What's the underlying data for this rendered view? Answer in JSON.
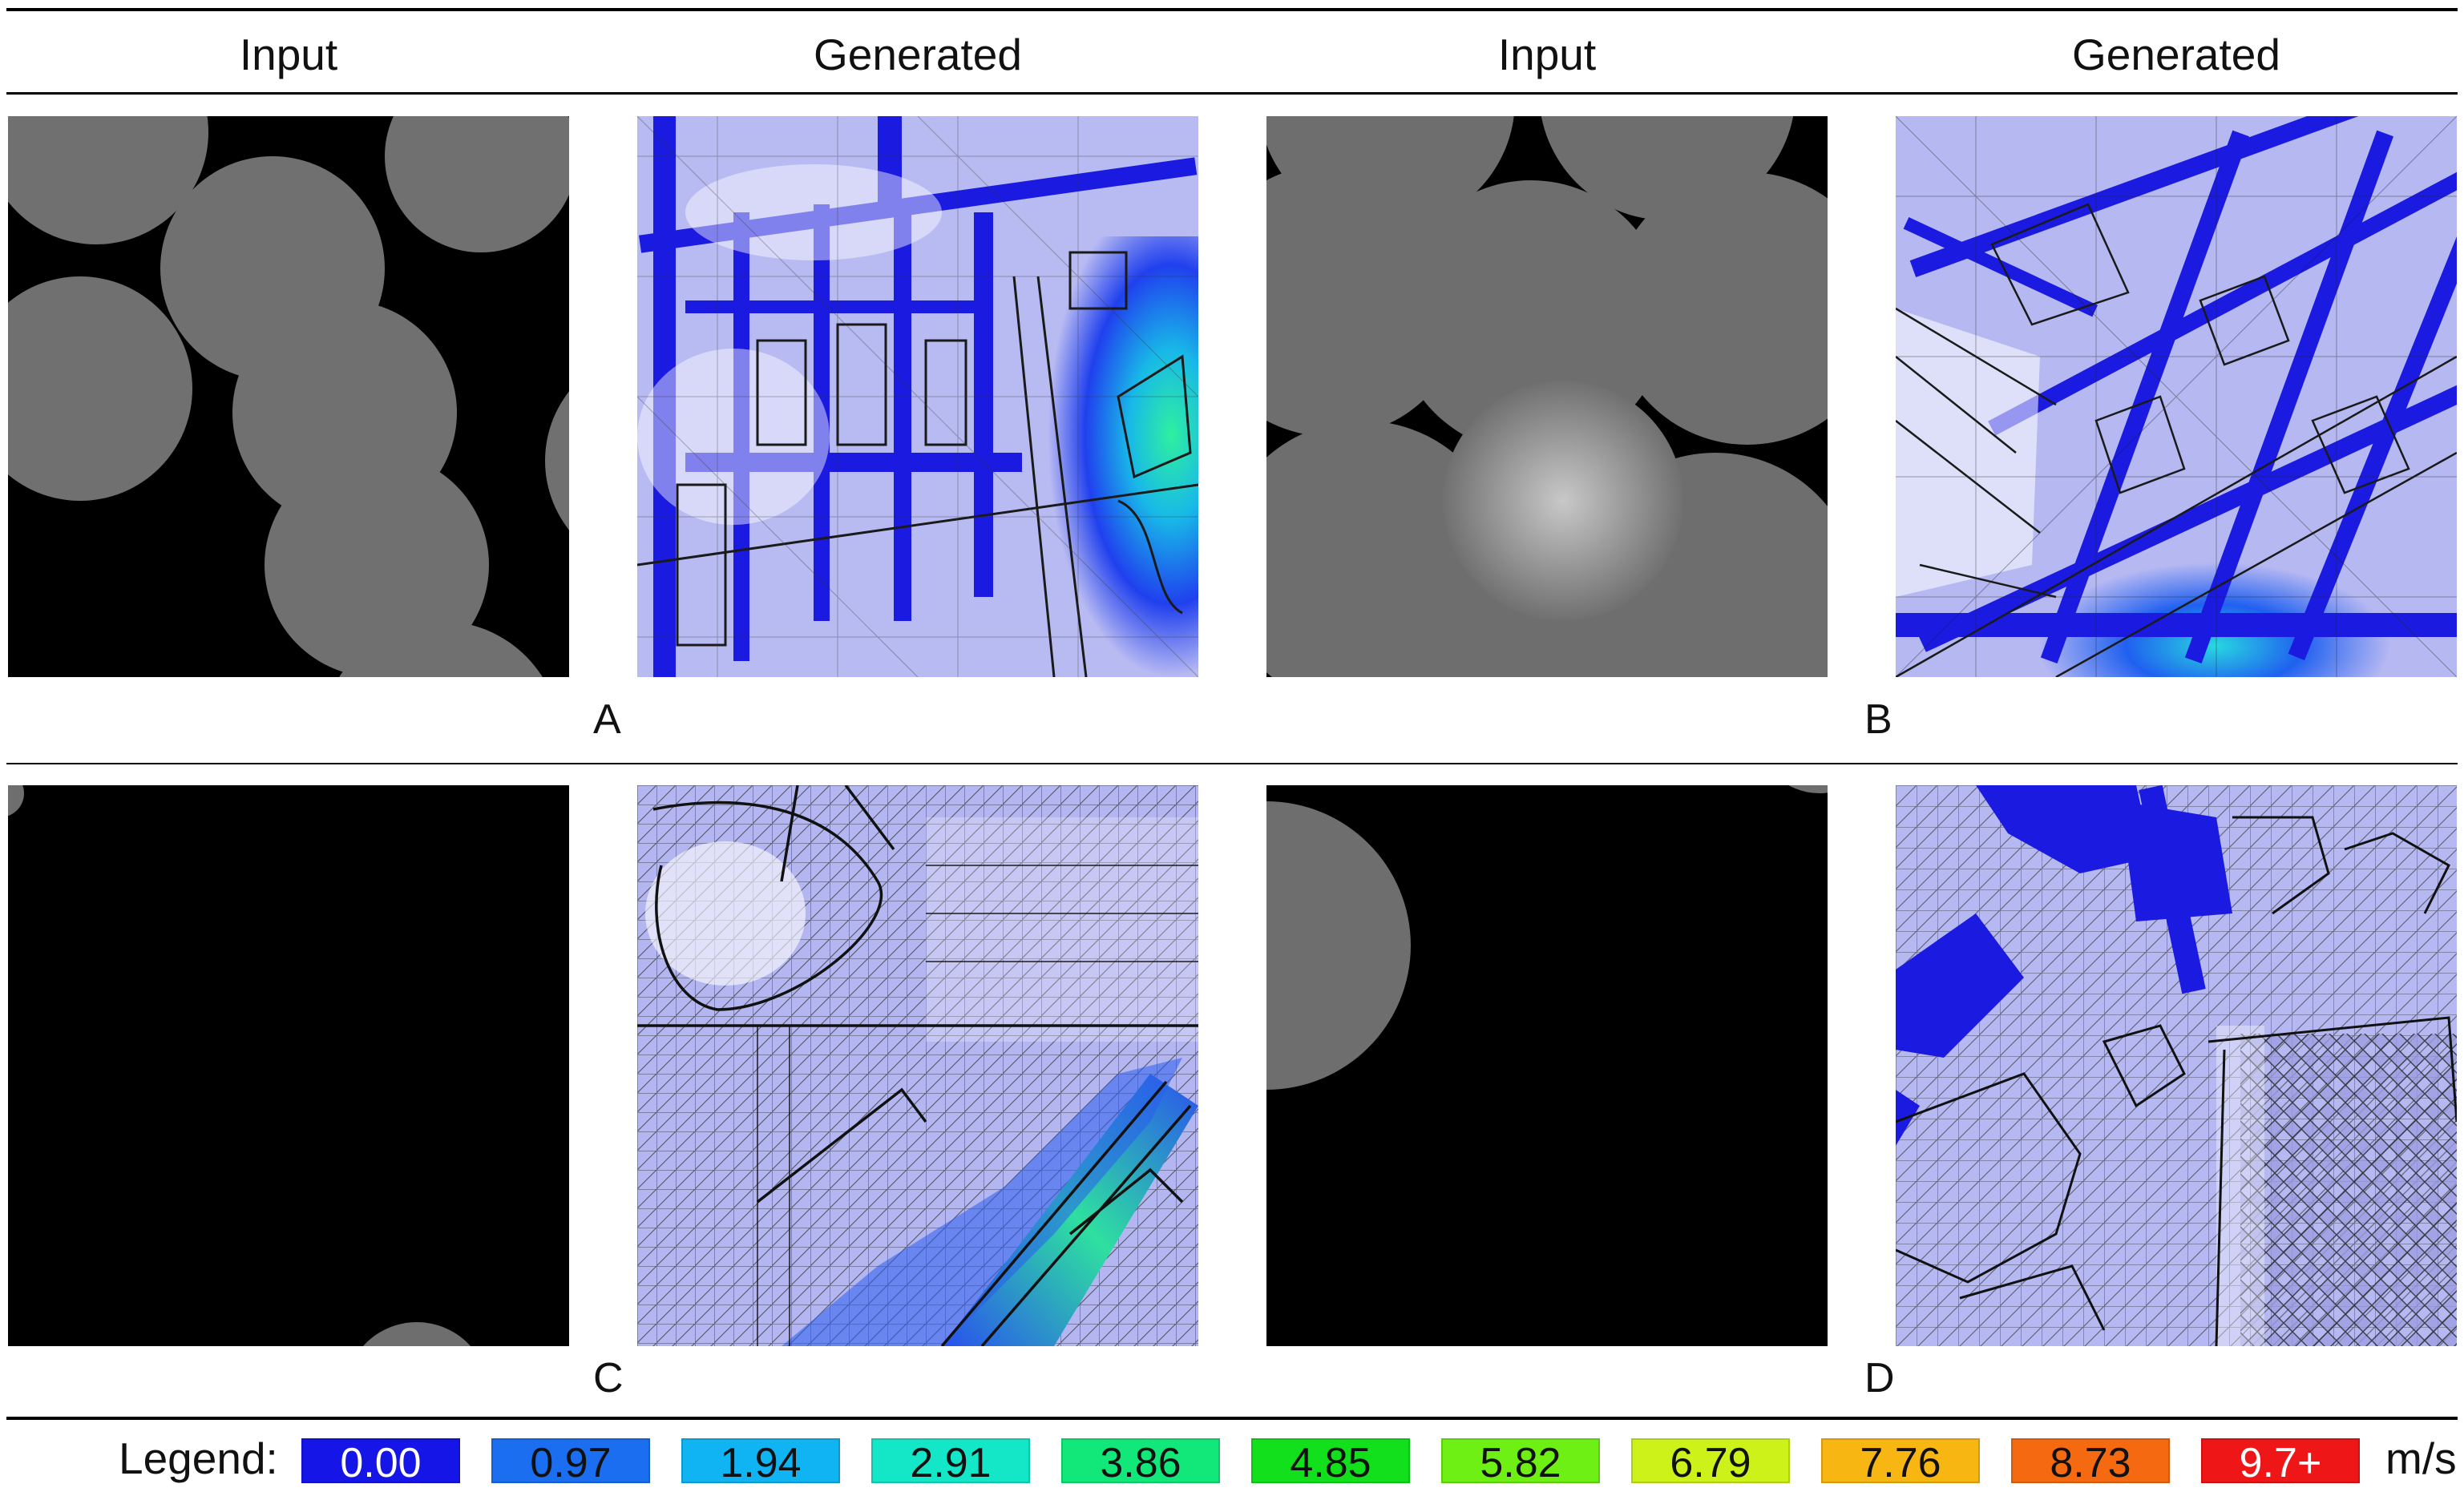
{
  "headers": [
    "Input",
    "Generated",
    "Input",
    "Generated"
  ],
  "panel_labels": [
    "A",
    "B",
    "C",
    "D"
  ],
  "legend": {
    "title": "Legend:",
    "unit": "m/s",
    "entries": [
      {
        "label": "0.00",
        "color": "#1515e8",
        "text_color": "#ffffff"
      },
      {
        "label": "0.97",
        "color": "#1b6ef0",
        "text_color": "#111111"
      },
      {
        "label": "1.94",
        "color": "#11b4f2",
        "text_color": "#111111"
      },
      {
        "label": "2.91",
        "color": "#14e6c8",
        "text_color": "#111111"
      },
      {
        "label": "3.86",
        "color": "#12e87a",
        "text_color": "#111111"
      },
      {
        "label": "4.85",
        "color": "#12e01c",
        "text_color": "#111111"
      },
      {
        "label": "5.82",
        "color": "#6ef014",
        "text_color": "#111111"
      },
      {
        "label": "6.79",
        "color": "#cdf21a",
        "text_color": "#111111"
      },
      {
        "label": "7.76",
        "color": "#f8b612",
        "text_color": "#111111"
      },
      {
        "label": "8.73",
        "color": "#f56a10",
        "text_color": "#111111"
      },
      {
        "label": "9.7+",
        "color": "#ee1616",
        "text_color": "#ffffff"
      }
    ]
  },
  "colors": {
    "input_background": "#000000",
    "input_blob": "#6e6e6e",
    "generated_base": "#b4b6f2",
    "road": "#1a1ae6",
    "line_art": "#1a1a1a"
  }
}
